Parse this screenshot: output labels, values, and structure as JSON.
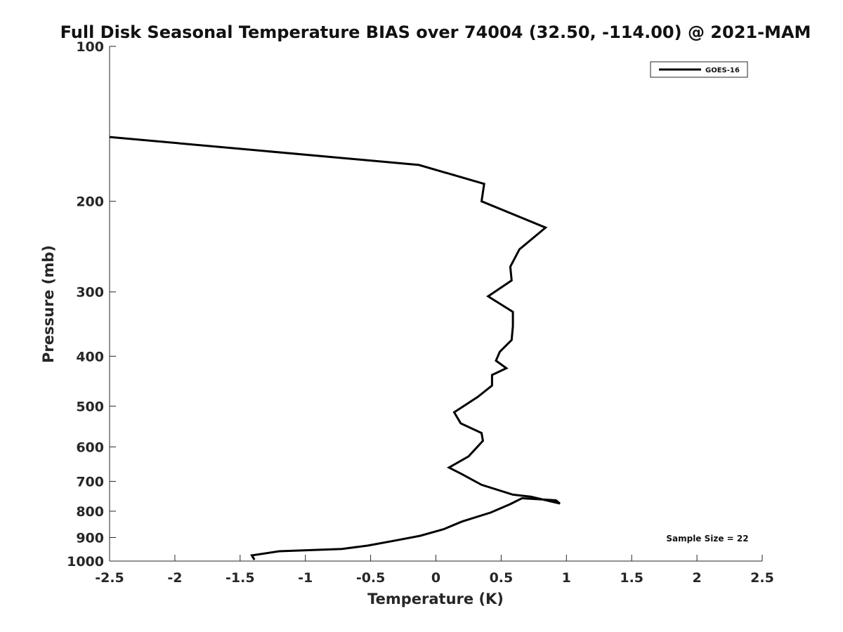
{
  "chart_data": {
    "type": "line",
    "title": "Full Disk Seasonal Temperature BIAS over 74004 (32.50, -114.00) @ 2021-MAM",
    "xlabel": "Temperature (K)",
    "ylabel": "Pressure (mb)",
    "xlim": [
      -2.5,
      2.5
    ],
    "ylim": [
      100,
      1000
    ],
    "y_scale": "log",
    "y_reversed": true,
    "x_ticks": [
      -2.5,
      -2,
      -1.5,
      -1,
      -0.5,
      0,
      0.5,
      1,
      1.5,
      2,
      2.5
    ],
    "x_tick_labels": [
      "-2.5",
      "-2",
      "-1.5",
      "-1",
      "-0.5",
      "0",
      "0.5",
      "1",
      "1.5",
      "2",
      "2.5"
    ],
    "y_ticks": [
      100,
      200,
      300,
      400,
      500,
      600,
      700,
      800,
      900,
      1000
    ],
    "y_tick_labels": [
      "100",
      "200",
      "300",
      "400",
      "500",
      "600",
      "700",
      "800",
      "900",
      "1000"
    ],
    "grid": false,
    "legend_position": "top-right",
    "annotation": "Sample Size = 22",
    "series": [
      {
        "name": "GOES-16",
        "color": "#000000",
        "x": [
          -2.5,
          -0.13,
          0.37,
          0.35,
          0.84,
          0.64,
          0.57,
          0.58,
          0.4,
          0.59,
          0.59,
          0.58,
          0.49,
          0.46,
          0.54,
          0.43,
          0.43,
          0.32,
          0.14,
          0.19,
          0.35,
          0.36,
          0.25,
          0.1,
          0.2,
          0.35,
          0.59,
          0.73,
          0.95,
          0.92,
          0.66,
          0.57,
          0.42,
          0.2,
          0.06,
          -0.12,
          -0.31,
          -0.52,
          -0.72,
          -1.2,
          -1.41,
          -1.39
        ],
        "y": [
          150,
          170,
          185,
          200,
          225,
          248,
          268,
          285,
          306,
          328,
          350,
          372,
          392,
          408,
          422,
          435,
          456,
          480,
          514,
          540,
          564,
          584,
          626,
          658,
          678,
          711,
          743,
          750,
          773,
          762,
          755,
          775,
          805,
          838,
          867,
          893,
          912,
          933,
          947,
          957,
          975,
          994
        ]
      }
    ]
  }
}
